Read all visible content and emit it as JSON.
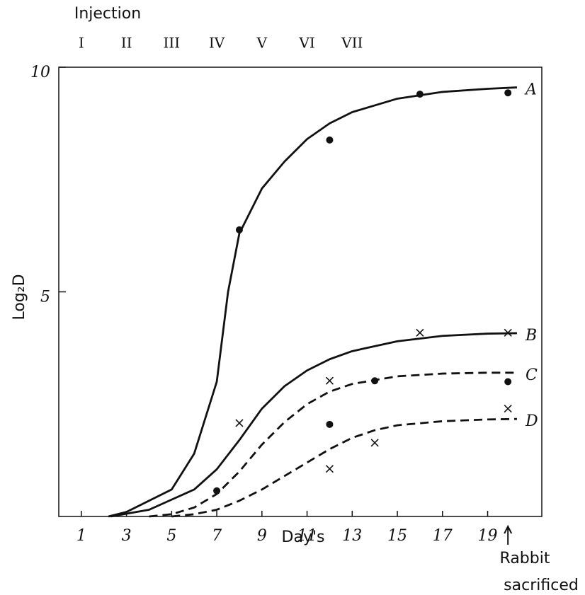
{
  "chart_data": {
    "type": "line",
    "injection_title": "Injection",
    "injections": [
      {
        "label": "I",
        "day": 1
      },
      {
        "label": "II",
        "day": 3
      },
      {
        "label": "III",
        "day": 5
      },
      {
        "label": "IV",
        "day": 7
      },
      {
        "label": "V",
        "day": 9
      },
      {
        "label": "VI",
        "day": 11
      },
      {
        "label": "VII",
        "day": 13
      }
    ],
    "y_label": "Log₂D",
    "x_label": "Day's",
    "annotation": {
      "lines": [
        "Rabbit",
        "sacrificed"
      ],
      "day": 19.9
    },
    "xlim": [
      0,
      21.4
    ],
    "ylim": [
      0,
      10
    ],
    "xticks": [
      1,
      3,
      5,
      7,
      9,
      11,
      13,
      15,
      17,
      19
    ],
    "yticks": [
      5,
      10
    ],
    "color": "#111111",
    "series": [
      {
        "name": "A",
        "style": "solid",
        "x": [
          2.2,
          3,
          5,
          6,
          7,
          7.5,
          8,
          9,
          10,
          11,
          12,
          13,
          15,
          17,
          19,
          20.3
        ],
        "values": [
          0,
          0.1,
          0.6,
          1.4,
          3,
          5,
          6.3,
          7.3,
          7.9,
          8.4,
          8.75,
          9.0,
          9.3,
          9.45,
          9.52,
          9.55
        ]
      },
      {
        "name": "B",
        "style": "solid",
        "x": [
          2.3,
          4,
          6,
          7,
          8,
          9,
          10,
          11,
          12,
          13,
          15,
          17,
          19,
          20.3
        ],
        "values": [
          0,
          0.15,
          0.6,
          1.05,
          1.7,
          2.4,
          2.9,
          3.25,
          3.5,
          3.68,
          3.9,
          4.02,
          4.07,
          4.08
        ]
      },
      {
        "name": "C",
        "style": "dashed",
        "x": [
          4,
          5,
          6,
          7,
          8,
          9,
          10,
          11,
          12,
          13,
          15,
          17,
          19,
          20.3
        ],
        "values": [
          0,
          0.05,
          0.2,
          0.5,
          1.0,
          1.6,
          2.1,
          2.5,
          2.78,
          2.95,
          3.12,
          3.18,
          3.2,
          3.2
        ]
      },
      {
        "name": "D",
        "style": "dashed",
        "x": [
          5,
          6,
          7,
          8,
          9,
          10,
          11,
          12,
          13,
          14,
          15,
          17,
          19,
          20.3
        ],
        "values": [
          0,
          0.05,
          0.15,
          0.35,
          0.6,
          0.9,
          1.2,
          1.5,
          1.75,
          1.92,
          2.03,
          2.12,
          2.16,
          2.17
        ]
      }
    ],
    "points": [
      {
        "marker": "dot",
        "x": [
          7,
          8,
          12,
          16,
          19.9,
          12,
          14,
          19.9
        ],
        "values": [
          0.57,
          6.38,
          8.38,
          9.4,
          9.43,
          2.05,
          3.02,
          3.0
        ]
      },
      {
        "marker": "cross",
        "x": [
          8,
          12,
          12,
          14,
          16,
          19.9,
          19.9
        ],
        "values": [
          2.08,
          3.02,
          1.06,
          1.64,
          4.09,
          4.09,
          2.4
        ]
      }
    ]
  }
}
